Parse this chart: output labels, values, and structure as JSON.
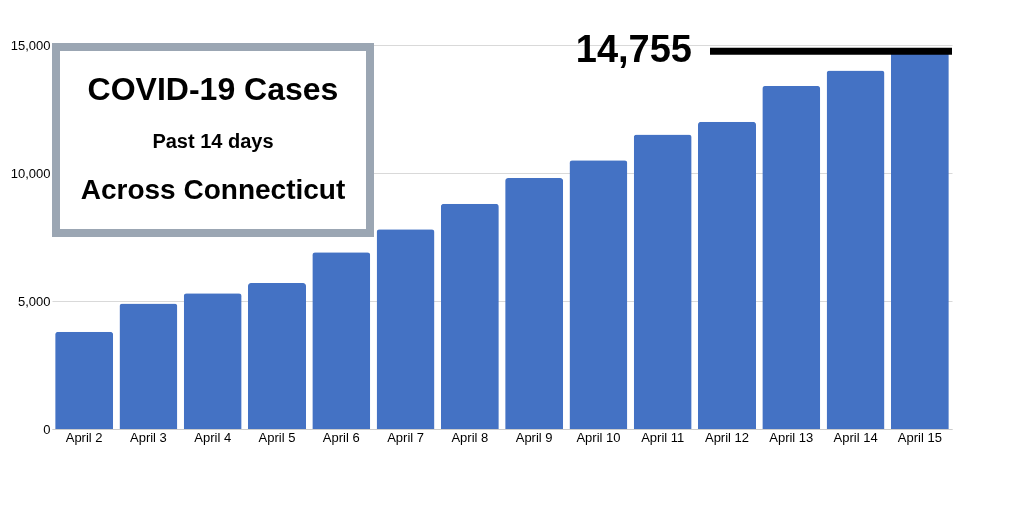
{
  "chart_data": {
    "type": "bar",
    "title": "COVID-19 Cases",
    "subtitle": "Past 14 days",
    "annotations": [
      "Across Connecticut"
    ],
    "categories": [
      "April 2",
      "April 3",
      "April 4",
      "April 5",
      "April 6",
      "April 7",
      "April 8",
      "April 9",
      "April 10",
      "April 11",
      "April 12",
      "April 13",
      "April 14",
      "April 15"
    ],
    "values": [
      3800,
      4900,
      5300,
      5700,
      6900,
      7800,
      8800,
      9800,
      10500,
      11500,
      12000,
      13400,
      14000,
      14755
    ],
    "color": "#4472c4",
    "ylim": [
      0,
      15000
    ],
    "yticks": [
      {
        "value": 0,
        "label": "0"
      },
      {
        "value": 5000,
        "label": "5,000"
      },
      {
        "value": 10000,
        "label": "10,000"
      },
      {
        "value": 15000,
        "label": "15,000"
      }
    ],
    "grid": "y",
    "ref_lines": [
      {
        "axis": "y",
        "value": 14755,
        "label": "14,755",
        "color": "#000000"
      }
    ]
  }
}
